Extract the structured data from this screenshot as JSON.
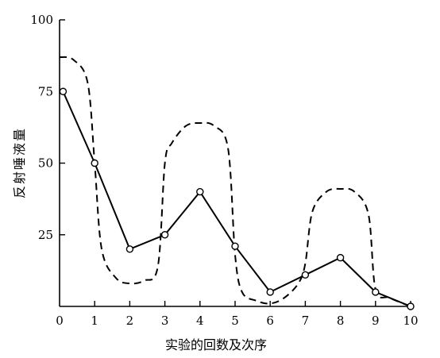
{
  "chart_data": {
    "type": "line",
    "xlabel": "实验的回数及次序",
    "ylabel": "反射唾液量",
    "xlim": [
      0,
      10
    ],
    "ylim": [
      0,
      100
    ],
    "x_ticks": [
      0,
      1,
      2,
      3,
      4,
      5,
      6,
      7,
      8,
      9,
      10
    ],
    "y_ticks": [
      25,
      50,
      75,
      100
    ],
    "series": [
      {
        "style": "solid-with-open-circles",
        "x": [
          0.1,
          1,
          2,
          3,
          4,
          5,
          6,
          7,
          8,
          9,
          10
        ],
        "y": [
          75,
          50,
          20,
          25,
          40,
          21,
          5,
          11,
          17,
          5,
          0
        ]
      },
      {
        "style": "dashed",
        "x": [
          0,
          0.4,
          0.8,
          1,
          1.2,
          1.6,
          2,
          2.4,
          2.8,
          3,
          3.2,
          3.6,
          4,
          4.4,
          4.8,
          5,
          5.2,
          5.6,
          6,
          6.4,
          6.8,
          7,
          7.2,
          7.6,
          8,
          8.4,
          8.8,
          9,
          9.4,
          10
        ],
        "y": [
          87,
          86,
          78,
          50,
          20,
          10,
          8,
          9,
          14,
          50,
          57,
          63,
          64,
          63,
          55,
          18,
          5,
          2,
          1,
          3,
          8,
          15,
          33,
          40,
          41,
          40,
          32,
          6,
          3,
          0
        ]
      }
    ]
  }
}
